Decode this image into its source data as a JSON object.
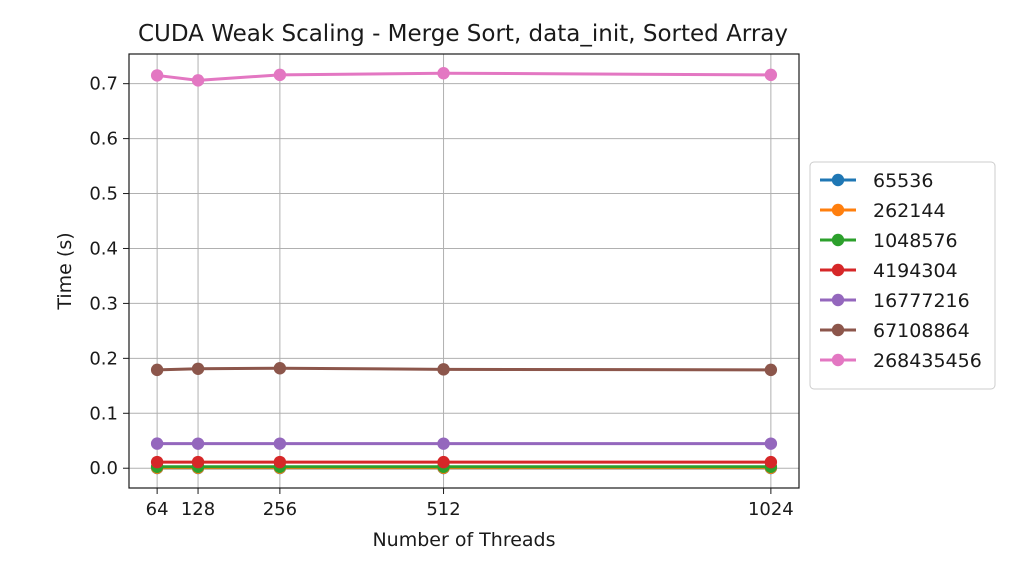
{
  "chart_data": {
    "type": "line",
    "title": "CUDA Weak Scaling - Merge Sort, data_init, Sorted Array",
    "xlabel": "Number of Threads",
    "ylabel": "Time (s)",
    "x": [
      64,
      128,
      256,
      512,
      1024
    ],
    "x_ticks": [
      64,
      128,
      256,
      512,
      1024
    ],
    "x_tick_labels": [
      "64",
      "128",
      "256",
      "512",
      "1024"
    ],
    "xlim": [
      20,
      1068
    ],
    "y_ticks": [
      0.0,
      0.1,
      0.2,
      0.3,
      0.4,
      0.5,
      0.6,
      0.7
    ],
    "y_tick_labels": [
      "0.0",
      "0.1",
      "0.2",
      "0.3",
      "0.4",
      "0.5",
      "0.6",
      "0.7"
    ],
    "ylim": [
      -0.036,
      0.754
    ],
    "grid": true,
    "legend_position": "outside-right",
    "series": [
      {
        "name": "65536",
        "color": "#1f77b4",
        "values": [
          0.0004,
          0.0004,
          0.0004,
          0.0004,
          0.0004
        ]
      },
      {
        "name": "262144",
        "color": "#ff7f0e",
        "values": [
          0.0008,
          0.0008,
          0.0008,
          0.0008,
          0.0008
        ]
      },
      {
        "name": "1048576",
        "color": "#2ca02c",
        "values": [
          0.0027,
          0.0027,
          0.0027,
          0.0027,
          0.0027
        ]
      },
      {
        "name": "4194304",
        "color": "#d62728",
        "values": [
          0.0112,
          0.0112,
          0.0112,
          0.0111,
          0.0111
        ]
      },
      {
        "name": "16777216",
        "color": "#9467bd",
        "values": [
          0.0448,
          0.0447,
          0.0447,
          0.0447,
          0.0447
        ]
      },
      {
        "name": "67108864",
        "color": "#8c564b",
        "values": [
          0.179,
          0.181,
          0.182,
          0.18,
          0.179
        ]
      },
      {
        "name": "268435456",
        "color": "#e377c2",
        "values": [
          0.715,
          0.706,
          0.716,
          0.719,
          0.716
        ]
      }
    ]
  }
}
